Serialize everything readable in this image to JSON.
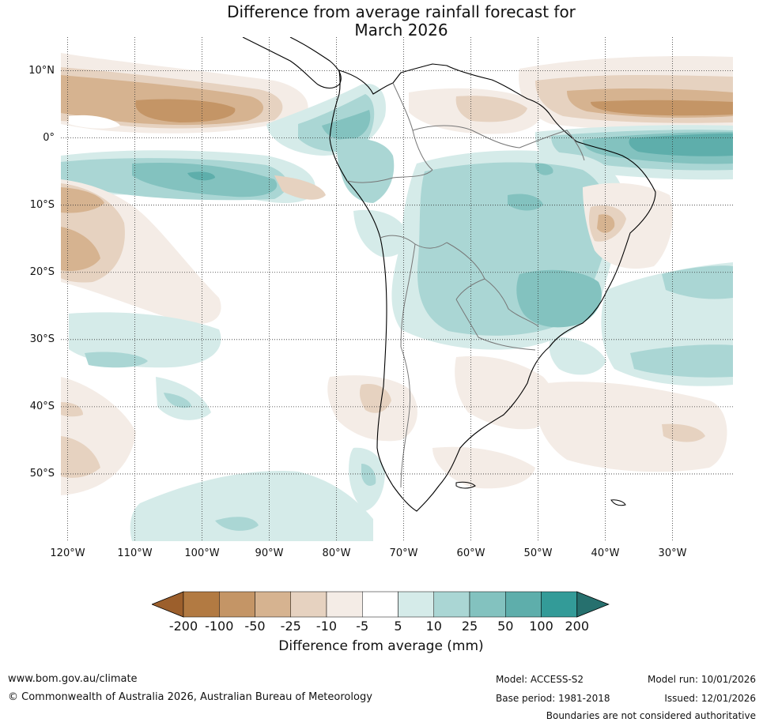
{
  "title": {
    "line1": "Difference from average rainfall forecast for",
    "line2": "March 2026"
  },
  "map": {
    "lat_labels": [
      "10°N",
      "0°",
      "10°S",
      "20°S",
      "30°S",
      "40°S",
      "50°S"
    ],
    "lon_labels": [
      "120°W",
      "110°W",
      "100°W",
      "90°W",
      "80°W",
      "70°W",
      "60°W",
      "50°W",
      "40°W",
      "30°W"
    ],
    "lat_values": [
      10,
      0,
      -10,
      -20,
      -30,
      -40,
      -50
    ],
    "lon_values": [
      -120,
      -110,
      -100,
      -90,
      -80,
      -70,
      -60,
      -50,
      -40,
      -30
    ],
    "extent": {
      "lon_min": -121,
      "lon_max": -21,
      "lat_min": -60,
      "lat_max": 15
    },
    "colors": {
      "ocean": "#ffffff",
      "coast": "#000000",
      "borders": "#777777",
      "grid": "#333333"
    }
  },
  "legend": {
    "title": "Difference from average (mm)",
    "tick_labels": [
      "-200",
      "-100",
      "-50",
      "-25",
      "-10",
      "-5",
      "5",
      "10",
      "25",
      "50",
      "100",
      "200"
    ],
    "colors": [
      "#9c5f2c",
      "#b27a42",
      "#c49566",
      "#d6b390",
      "#e6d2c0",
      "#f4ece6",
      "#ffffff",
      "#d5ebe9",
      "#aad6d4",
      "#83c2bf",
      "#5eaeab",
      "#339b98",
      "#26706e"
    ]
  },
  "footer": {
    "website": "www.bom.gov.au/climate",
    "copyright": "© Commonwealth of Australia 2026, Australian Bureau of Meteorology",
    "model": "Model: ACCESS-S2",
    "base_period": "Base period: 1981-2018",
    "model_run": "Model run: 10/01/2026",
    "issued": "Issued: 12/01/2026",
    "disclaimer": "Boundaries are not considered authoritative"
  }
}
